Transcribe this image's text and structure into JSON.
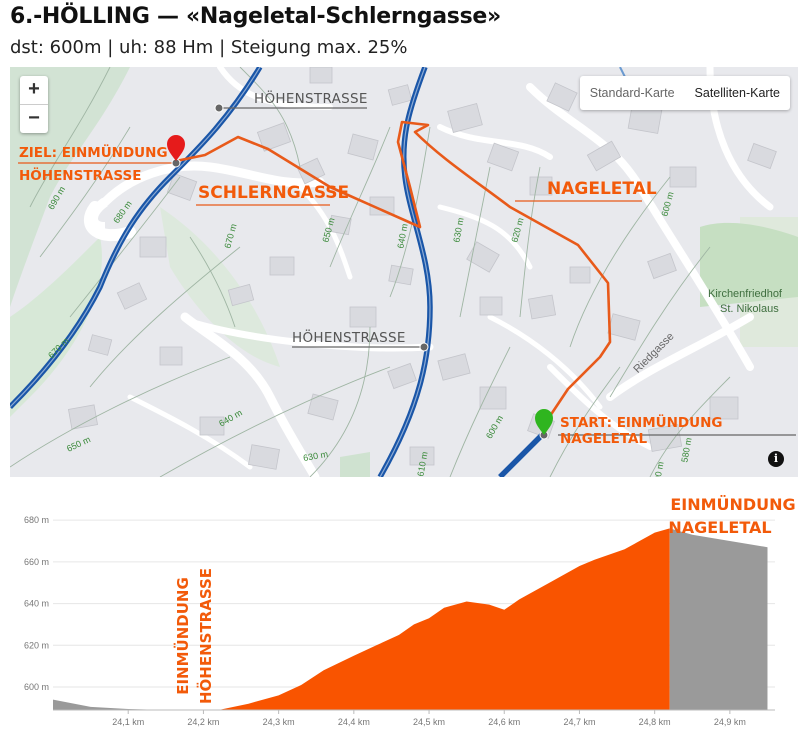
{
  "header": {
    "title": "6.-HÖLLING — «Nagele­tal-Schlerngasse»",
    "subtitle": "dst: 600m | uh: 88 Hm | Steigung max. 25%"
  },
  "map": {
    "zoom_in": "+",
    "zoom_out": "−",
    "map_types": [
      "Standard-Karte",
      "Satelliten-Karte"
    ],
    "selected_map_type": "Satelliten-Karte",
    "info_icon": "i",
    "labels": {
      "hoehenstrasse_top": "HÖHENSTRASSE",
      "hoehenstrasse_mid": "HÖHENSTRASSE",
      "ziel_line1": "ZIEL: EINMÜNDUNG",
      "ziel_line2": "HÖHENSTRASSE",
      "schlerngasse": "SCHLERNGASSE",
      "nageletal": "NAGELETAL",
      "start": "START: EINMÜNDUNG NAGELETAL",
      "friedhof_line1": "Kirchenfriedhof",
      "friedhof_line2": "St. Nikolaus",
      "riedgasse": "Riedgasse"
    },
    "contours": [
      "690 m",
      "680 m",
      "670 m",
      "650 m",
      "640 m",
      "630 m",
      "620 m",
      "600 m",
      "670 m",
      "640 m",
      "650 m",
      "630 m",
      "610 m",
      "600 m",
      "600 m",
      "580 m"
    ],
    "colors": {
      "route": "#e85a1a",
      "road": "#1a56a8",
      "start": "#2fb51f",
      "finish": "#e61b1b",
      "contour": "#3a8a3a"
    }
  },
  "chart_data": {
    "type": "area",
    "title": "",
    "xlabel": "",
    "ylabel": "",
    "x_ticks": [
      "24,1 km",
      "24,2 km",
      "24,3 km",
      "24,4 km",
      "24,5 km",
      "24,6 km",
      "24,7 km",
      "24,8 km",
      "24,9 km"
    ],
    "y_ticks": [
      "680 m",
      "660 m",
      "640 m",
      "620 m",
      "600 m"
    ],
    "ylim": [
      589,
      681
    ],
    "xlim": [
      24.0,
      24.96
    ],
    "annotations": {
      "start_label_line1": "EINMÜNDUNG",
      "start_label_line2": "NAGELETAL",
      "end_label_line1": "EINMÜNDUNG",
      "end_label_line2": "HÖHENSTRASSE"
    },
    "series": [
      {
        "color": "#9a9a9a",
        "x": [
          24.0,
          24.05,
          24.1,
          24.15,
          24.2,
          24.22
        ],
        "y": [
          594,
          590.5,
          589.5,
          589,
          589,
          589
        ]
      },
      {
        "color": "#f95400",
        "x": [
          24.22,
          24.26,
          24.3,
          24.33,
          24.36,
          24.4,
          24.43,
          24.46,
          24.48,
          24.5,
          24.52,
          24.55,
          24.58,
          24.6,
          24.62,
          24.66,
          24.7,
          24.72,
          24.76,
          24.8,
          24.82
        ],
        "y": [
          589,
          592,
          596,
          601,
          608,
          615,
          620,
          625,
          630,
          633,
          638,
          641,
          639.5,
          637,
          642,
          650,
          658,
          661,
          666,
          674,
          676
        ]
      },
      {
        "color": "#9a9a9a",
        "x": [
          24.82,
          24.85,
          24.9,
          24.95
        ],
        "y": [
          676,
          673,
          670,
          667
        ]
      }
    ]
  }
}
